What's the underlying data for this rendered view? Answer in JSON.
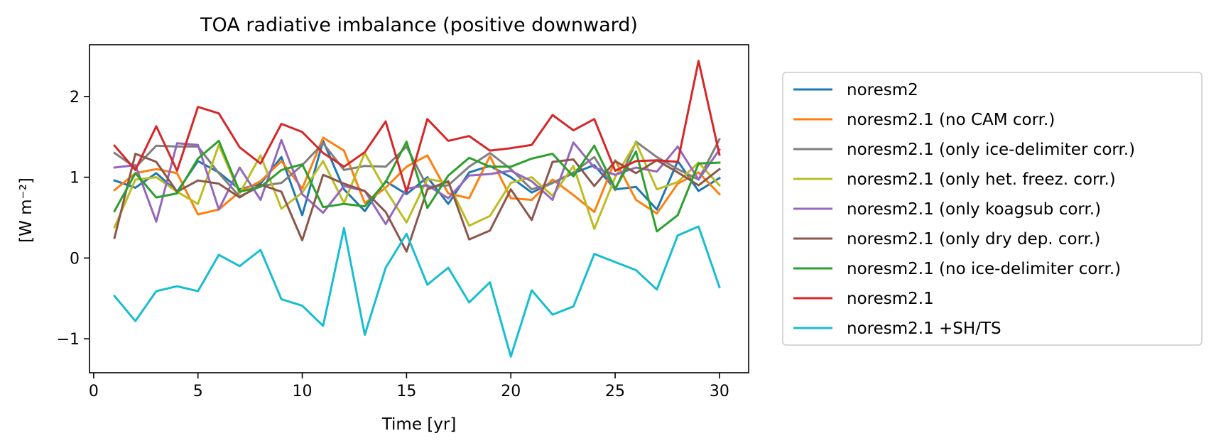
{
  "chart_data": {
    "type": "line",
    "title": "TOA radiative imbalance (positive downward)",
    "xlabel": "Time [yr]",
    "ylabel": "[W m⁻²]",
    "xlim": [
      -0.2,
      31.4
    ],
    "ylim": [
      -1.42,
      2.64
    ],
    "xticks": [
      0,
      5,
      10,
      15,
      20,
      25,
      30
    ],
    "xtick_labels": [
      "0",
      "5",
      "10",
      "15",
      "20",
      "25",
      "30"
    ],
    "yticks": [
      -1,
      0,
      1,
      2
    ],
    "ytick_labels": [
      "−1",
      "0",
      "1",
      "2"
    ],
    "grid": false,
    "legend_position": "outside-right",
    "x": [
      1,
      2,
      3,
      4,
      5,
      6,
      7,
      8,
      9,
      10,
      11,
      12,
      13,
      14,
      15,
      16,
      17,
      18,
      19,
      20,
      21,
      22,
      23,
      24,
      25,
      26,
      27,
      28,
      29,
      30
    ],
    "series": [
      {
        "name": "noresm2",
        "color": "#1f77b4",
        "values": [
          0.96,
          0.87,
          1.05,
          0.82,
          1.2,
          1.06,
          0.85,
          0.92,
          1.25,
          0.53,
          1.45,
          0.85,
          0.58,
          0.95,
          0.79,
          1.0,
          0.67,
          1.06,
          1.14,
          1.0,
          0.81,
          0.93,
          1.05,
          1.15,
          0.85,
          0.88,
          0.6,
          1.2,
          0.83,
          0.99
        ]
      },
      {
        "name": "noresm2.1 (no CAM corr.)",
        "color": "#ff7f0e",
        "values": [
          0.84,
          1.05,
          1.1,
          1.05,
          0.54,
          0.6,
          0.82,
          0.95,
          1.2,
          0.86,
          1.49,
          1.33,
          0.68,
          0.87,
          1.13,
          1.27,
          0.8,
          0.74,
          1.26,
          0.74,
          0.72,
          0.97,
          0.78,
          0.57,
          1.21,
          0.72,
          0.55,
          0.92,
          1.06,
          0.79
        ]
      },
      {
        "name": "noresm2.1 (only ice-delimiter corr.)",
        "color": "#7f7f7f",
        "values": [
          1.3,
          1.12,
          1.39,
          1.38,
          1.38,
          1.05,
          0.76,
          0.89,
          0.93,
          1.15,
          1.42,
          1.09,
          1.14,
          1.13,
          1.38,
          0.88,
          0.9,
          1.13,
          1.3,
          1.1,
          0.85,
          0.93,
          1.06,
          1.25,
          0.84,
          1.44,
          1.25,
          1.1,
          0.97,
          1.47
        ]
      },
      {
        "name": "noresm2.1 (only het. freez. corr.)",
        "color": "#bcbd22",
        "values": [
          0.38,
          0.97,
          1.0,
          0.82,
          0.67,
          1.4,
          0.8,
          1.27,
          0.61,
          0.81,
          1.2,
          0.68,
          1.3,
          0.84,
          0.44,
          0.98,
          0.93,
          0.4,
          0.52,
          0.93,
          1.0,
          0.77,
          1.14,
          0.36,
          1.0,
          1.43,
          0.85,
          0.94,
          1.18,
          0.9
        ]
      },
      {
        "name": "noresm2.1 (only koagsub corr.)",
        "color": "#9467bd",
        "values": [
          1.12,
          1.15,
          0.45,
          1.42,
          1.4,
          0.6,
          1.12,
          0.72,
          1.46,
          0.79,
          0.56,
          0.89,
          0.83,
          0.42,
          0.86,
          0.9,
          0.74,
          1.02,
          1.04,
          1.08,
          0.95,
          0.72,
          1.43,
          1.12,
          1.03,
          1.12,
          1.07,
          1.38,
          0.97,
          1.34
        ]
      },
      {
        "name": "noresm2.1 (only dry dep. corr.)",
        "color": "#8c564b",
        "values": [
          0.25,
          1.29,
          1.19,
          0.82,
          0.96,
          0.92,
          0.75,
          0.91,
          0.82,
          0.22,
          1.03,
          0.92,
          0.83,
          0.57,
          0.08,
          0.85,
          0.95,
          0.23,
          0.34,
          0.85,
          0.47,
          1.19,
          1.22,
          0.89,
          1.2,
          1.05,
          1.21,
          1.06,
          0.9,
          1.1
        ]
      },
      {
        "name": "noresm2.1 (no ice-delimiter corr.)",
        "color": "#2ca02c",
        "values": [
          0.58,
          1.05,
          0.75,
          0.8,
          1.23,
          1.45,
          0.82,
          0.88,
          1.09,
          1.16,
          0.63,
          0.67,
          0.64,
          0.94,
          1.44,
          0.62,
          1.02,
          1.24,
          1.13,
          1.13,
          1.23,
          1.29,
          1.01,
          1.39,
          0.86,
          1.32,
          0.33,
          0.53,
          1.17,
          1.18
        ]
      },
      {
        "name": "noresm2.1",
        "color": "#d62728",
        "values": [
          1.39,
          1.09,
          1.63,
          1.08,
          1.87,
          1.79,
          1.37,
          1.17,
          1.66,
          1.56,
          1.3,
          1.13,
          1.31,
          1.69,
          0.82,
          1.72,
          1.45,
          1.51,
          1.33,
          1.36,
          1.4,
          1.77,
          1.58,
          1.72,
          1.08,
          1.2,
          1.21,
          1.19,
          2.44,
          1.28
        ]
      },
      {
        "name": "noresm2.1 +SH/TS",
        "color": "#17becf",
        "values": [
          -0.47,
          -0.78,
          -0.41,
          -0.35,
          -0.41,
          0.04,
          -0.1,
          0.1,
          -0.51,
          -0.59,
          -0.84,
          0.37,
          -0.95,
          -0.12,
          0.3,
          -0.33,
          -0.12,
          -0.55,
          -0.3,
          -1.22,
          -0.4,
          -0.7,
          -0.6,
          0.05,
          -0.05,
          -0.15,
          -0.39,
          0.28,
          0.39,
          -0.36
        ]
      }
    ]
  }
}
